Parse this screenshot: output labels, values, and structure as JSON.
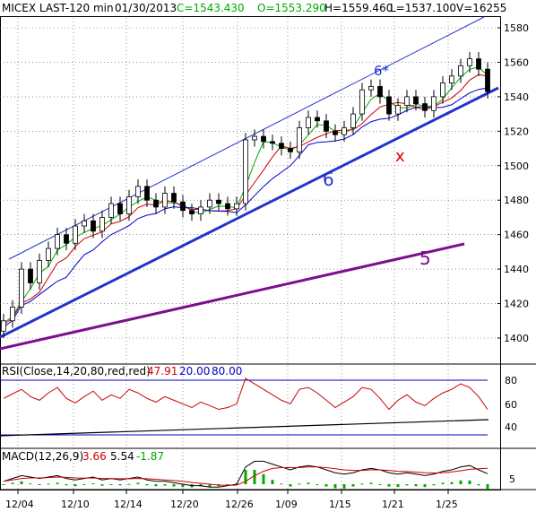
{
  "header": {
    "symbol": "MICEX LAST-120 min",
    "date": "01/30/2013",
    "close": "C=1543.430",
    "open": "O=1553.290",
    "high": "H=1559.460",
    "low": "L=1537.100",
    "volume": "V=16255"
  },
  "colors": {
    "price": "#000000",
    "ma_fast": "#00aa00",
    "ma_mid": "#cc0000",
    "ma_slow": "#0000cc",
    "channel": "#2233cc",
    "purple": "#7b0f8c",
    "rsi_line": "#cc0000",
    "macd_line": "#000000",
    "signal_line": "#cc0000",
    "hist": "#00aa00",
    "grid": "#555555"
  },
  "annotations": {
    "six_star": "6*",
    "six": "6",
    "five": "5",
    "x_mark": "x"
  },
  "rsi_panel": {
    "label": "RSI(Close,14,20,80,red,red)",
    "value": "47.91",
    "low": "20.00",
    "high": "80.00",
    "ticks": [
      "80",
      "60",
      "40"
    ]
  },
  "macd_panel": {
    "label": "MACD(12,26,9)",
    "macd": "3.66",
    "signal": "5.54",
    "hist": "-1.87",
    "ticks": [
      "5"
    ]
  },
  "chart_data": {
    "type": "candlestick",
    "x_labels": [
      "12/04",
      "12/10",
      "12/14",
      "12/20",
      "12/26",
      "1/09",
      "1/15",
      "1/21",
      "1/25"
    ],
    "y_ticks": [
      1400,
      1420,
      1440,
      1460,
      1480,
      1500,
      1520,
      1540,
      1560,
      1580
    ],
    "ylim": [
      1385,
      1590
    ],
    "series": [
      {
        "name": "Close",
        "values": [
          1410,
          1418,
          1440,
          1432,
          1445,
          1452,
          1460,
          1455,
          1465,
          1468,
          1462,
          1470,
          1478,
          1472,
          1482,
          1488,
          1480,
          1476,
          1484,
          1479,
          1474,
          1472,
          1476,
          1480,
          1478,
          1475,
          1478,
          1515,
          1517,
          1514,
          1513,
          1510,
          1508,
          1522,
          1528,
          1526,
          1520,
          1518,
          1522,
          1530,
          1544,
          1546,
          1540,
          1530,
          1535,
          1540,
          1536,
          1532,
          1540,
          1548,
          1552,
          1558,
          1562,
          1556,
          1543
        ]
      }
    ],
    "rsi_values": [
      60,
      65,
      70,
      62,
      58,
      66,
      72,
      60,
      55,
      62,
      68,
      58,
      64,
      60,
      70,
      66,
      60,
      56,
      62,
      58,
      54,
      50,
      56,
      52,
      48,
      50,
      54,
      82,
      76,
      70,
      64,
      58,
      54,
      70,
      72,
      66,
      58,
      50,
      56,
      62,
      72,
      70,
      60,
      48,
      58,
      64,
      56,
      52,
      60,
      66,
      70,
      76,
      72,
      62,
      47.91
    ],
    "macd_values": [
      1,
      2,
      3,
      2.5,
      2,
      2.5,
      3,
      2,
      1.5,
      2,
      2.5,
      1.5,
      2,
      1.5,
      2,
      2.5,
      1.5,
      1,
      1,
      0.5,
      0,
      -0.5,
      -0.5,
      -1,
      -1,
      -0.5,
      0,
      6,
      8,
      8,
      7,
      6,
      5,
      6,
      6.5,
      6,
      5,
      4,
      3.5,
      4,
      5,
      5.5,
      5,
      4,
      3.5,
      4,
      3.5,
      3,
      3.5,
      4.5,
      5,
      6,
      6.5,
      5,
      3.66
    ],
    "signal_values": [
      1,
      1.5,
      2,
      2.2,
      2.2,
      2.3,
      2.5,
      2.4,
      2.2,
      2.1,
      2.2,
      2,
      2,
      1.9,
      1.9,
      2,
      1.9,
      1.7,
      1.5,
      1.3,
      1,
      0.6,
      0.3,
      0,
      -0.3,
      -0.4,
      -0.3,
      1,
      3,
      4.5,
      5.5,
      5.8,
      5.8,
      5.8,
      6,
      6,
      5.8,
      5.4,
      5,
      4.8,
      4.8,
      5,
      5,
      4.8,
      4.5,
      4.4,
      4.2,
      4,
      3.9,
      4,
      4.3,
      4.7,
      5.2,
      5.4,
      5.54
    ]
  }
}
